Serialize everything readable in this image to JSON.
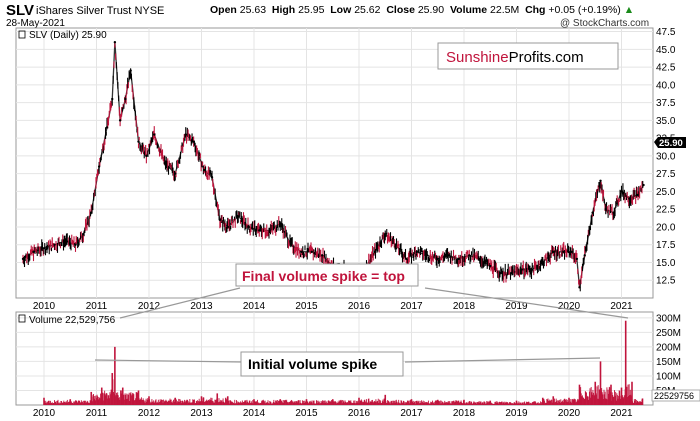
{
  "header": {
    "symbol": "SLV",
    "name": "iShares Silver Trust",
    "exchange": "NYSE",
    "date": "28-May-2021",
    "open_label": "Open",
    "open": "25.63",
    "high_label": "High",
    "high": "25.95",
    "low_label": "Low",
    "low": "25.62",
    "close_label": "Close",
    "close": "25.90",
    "volume_label": "Volume",
    "volume": "22.5M",
    "chg_label": "Chg",
    "chg": "+0.05 (+0.19%)",
    "copyright": "@ StockCharts.com"
  },
  "brand": {
    "part1": "Sunshine",
    "part2": "Profits.com",
    "color1": "#c0143c"
  },
  "colors": {
    "up": "#000000",
    "down": "#c0143c",
    "volume": "#c0143c",
    "callout_stroke": "#999999"
  },
  "chart_data": [
    {
      "type": "bar",
      "title": "SLV (Daily) 25.90",
      "last_value_label": "25.90",
      "x_ticks": [
        "2010",
        "2011",
        "2012",
        "2013",
        "2014",
        "2015",
        "2016",
        "2017",
        "2018",
        "2019",
        "2020",
        "2021"
      ],
      "y_ticks": [
        "12.5",
        "15.0",
        "17.5",
        "20.0",
        "22.5",
        "25.0",
        "27.5",
        "30.0",
        "32.5",
        "35.0",
        "37.5",
        "40.0",
        "42.5",
        "45.0",
        "47.5"
      ],
      "ylim": [
        10,
        48
      ],
      "x": [
        2009.6,
        2009.8,
        2010.0,
        2010.2,
        2010.4,
        2010.6,
        2010.75,
        2010.9,
        2011.05,
        2011.2,
        2011.3,
        2011.35,
        2011.45,
        2011.55,
        2011.65,
        2011.8,
        2011.95,
        2012.1,
        2012.3,
        2012.5,
        2012.7,
        2012.85,
        2013.05,
        2013.2,
        2013.35,
        2013.5,
        2013.7,
        2013.9,
        2014.1,
        2014.3,
        2014.5,
        2014.7,
        2014.9,
        2015.1,
        2015.3,
        2015.5,
        2015.7,
        2015.9,
        2016.1,
        2016.3,
        2016.5,
        2016.7,
        2016.9,
        2017.1,
        2017.3,
        2017.5,
        2017.7,
        2017.9,
        2018.1,
        2018.3,
        2018.5,
        2018.7,
        2018.9,
        2019.1,
        2019.3,
        2019.5,
        2019.7,
        2019.9,
        2020.05,
        2020.15,
        2020.2,
        2020.3,
        2020.45,
        2020.6,
        2020.7,
        2020.85,
        2021.0,
        2021.15,
        2021.3,
        2021.42
      ],
      "close": [
        15.5,
        16.5,
        17.0,
        17.5,
        18.0,
        17.5,
        19.0,
        22.0,
        28.5,
        34.0,
        38.0,
        46.0,
        35.0,
        38.0,
        42.0,
        32.0,
        30.0,
        33.0,
        29.0,
        27.5,
        33.0,
        32.0,
        28.0,
        27.0,
        21.0,
        20.0,
        21.5,
        20.0,
        19.5,
        19.5,
        20.5,
        17.5,
        16.5,
        16.5,
        16.0,
        14.5,
        14.0,
        13.5,
        14.0,
        16.5,
        19.0,
        17.5,
        15.5,
        16.5,
        16.0,
        15.5,
        16.0,
        15.5,
        16.0,
        15.5,
        14.5,
        13.5,
        13.5,
        14.0,
        14.0,
        15.0,
        16.5,
        16.5,
        16.5,
        15.5,
        11.5,
        16.0,
        22.0,
        26.5,
        22.5,
        22.0,
        25.0,
        24.0,
        24.5,
        25.9
      ],
      "annotations": [
        {
          "text": "Final volume spike = top"
        },
        {
          "text": "Initial volume spike"
        }
      ]
    },
    {
      "type": "bar",
      "title": "Volume 22,529,756",
      "last_value_label": "22529756",
      "y_ticks": [
        "50M",
        "100M",
        "150M",
        "200M",
        "250M",
        "300M"
      ],
      "ylim": [
        0,
        320
      ],
      "unit": "M",
      "x": [
        2010.0,
        2010.5,
        2010.9,
        2011.1,
        2011.3,
        2011.35,
        2011.5,
        2011.8,
        2012.0,
        2012.5,
        2013.0,
        2013.3,
        2013.5,
        2014.0,
        2014.5,
        2015.0,
        2015.5,
        2016.0,
        2016.5,
        2017.0,
        2017.5,
        2018.0,
        2018.5,
        2019.0,
        2019.5,
        2019.7,
        2020.0,
        2020.2,
        2020.5,
        2020.6,
        2020.8,
        2021.0,
        2021.08,
        2021.2,
        2021.4
      ],
      "values": [
        25,
        20,
        45,
        60,
        110,
        200,
        60,
        50,
        30,
        25,
        30,
        40,
        30,
        20,
        20,
        20,
        20,
        25,
        35,
        20,
        18,
        18,
        15,
        15,
        25,
        30,
        25,
        70,
        80,
        150,
        70,
        60,
        290,
        80,
        22.5
      ]
    }
  ]
}
